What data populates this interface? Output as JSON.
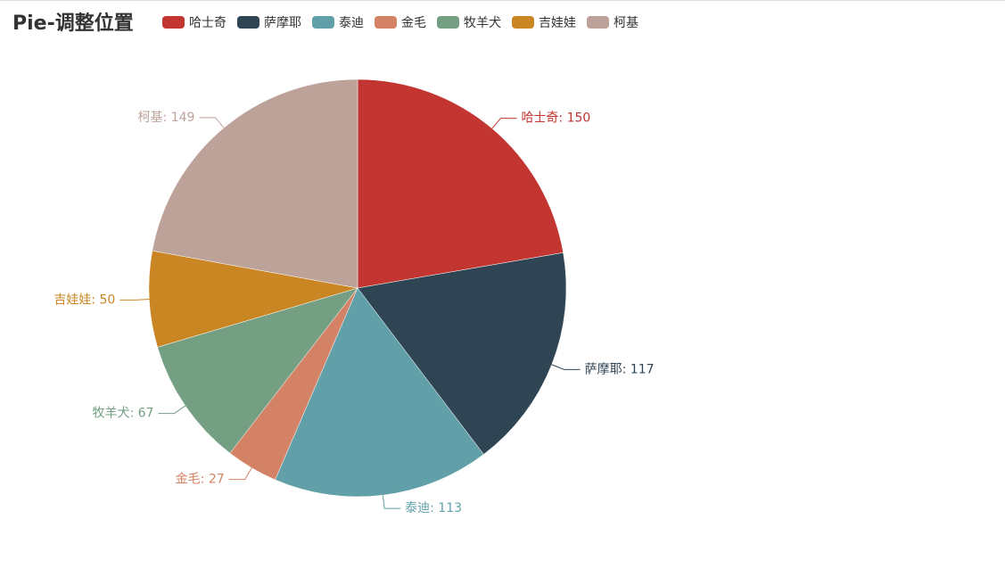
{
  "chart_data": {
    "type": "pie",
    "title": "Pie-调整位置",
    "categories": [
      "哈士奇",
      "萨摩耶",
      "泰迪",
      "金毛",
      "牧羊犬",
      "吉娃娃",
      "柯基"
    ],
    "values": [
      150,
      117,
      113,
      27,
      67,
      50,
      149
    ],
    "value_labels": [
      "哈士奇: 150",
      "萨摩耶: 117",
      "泰迪: 113",
      "金毛: 27",
      "牧羊犬: 67",
      "吉娃娃: 50",
      "柯基: 149"
    ],
    "colors": [
      "#c23531",
      "#2f4554",
      "#61a0a8",
      "#d48265",
      "#749f83",
      "#ca8622",
      "#bda29a"
    ],
    "legend": "top"
  }
}
